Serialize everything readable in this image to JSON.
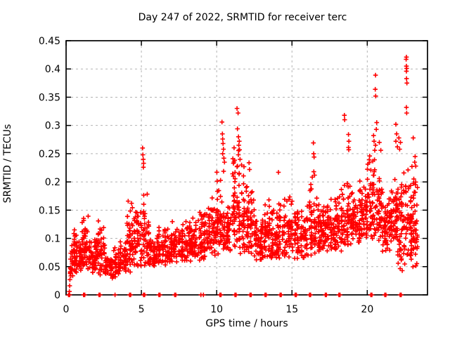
{
  "title": "Day 247 of 2022, SRMTID for receiver terc",
  "chart_data": {
    "type": "scatter",
    "title": "Day 247 of 2022, SRMTID for receiver terc",
    "xlabel": "GPS time / hours",
    "ylabel": "SRMTID / TECUs",
    "x_range": [
      0,
      24
    ],
    "y_range": [
      0,
      0.45
    ],
    "x_ticks": [
      0,
      5,
      10,
      15,
      20
    ],
    "y_ticks": [
      0,
      0.05,
      0.1,
      0.15,
      0.2,
      0.25,
      0.3,
      0.35,
      0.4,
      0.45
    ],
    "grid": true,
    "grid_color": "#b3b3b3",
    "marker": "plus",
    "marker_color": "#ff0000",
    "frame_color": "#000000",
    "legend": "none",
    "description": "Dense scatter of SRMTID values vs GPS time; baseline clusters of points at y=0 near most integer hours; rising trend from ~0.07 early to ~0.15 late with vertical spike columns at ~5.1, 10.4, 11.4, 16.4, 18.5-18.8, 20.5, 21.9, and a maximum column reaching ~0.42 at hour ~22.6.",
    "outlier_points": [
      [
        0.22,
        0.006
      ],
      [
        0.24,
        0.016
      ],
      [
        0.25,
        0.027
      ],
      [
        0.27,
        0.038
      ],
      [
        5.08,
        0.26
      ],
      [
        5.1,
        0.248
      ],
      [
        5.12,
        0.24
      ],
      [
        5.15,
        0.233
      ],
      [
        5.13,
        0.226
      ],
      [
        10.35,
        0.306
      ],
      [
        10.38,
        0.285
      ],
      [
        10.4,
        0.276
      ],
      [
        10.42,
        0.268
      ],
      [
        10.45,
        0.258
      ],
      [
        10.4,
        0.25
      ],
      [
        10.48,
        0.242
      ],
      [
        10.52,
        0.235
      ],
      [
        11.35,
        0.33
      ],
      [
        11.42,
        0.322
      ],
      [
        11.38,
        0.294
      ],
      [
        11.45,
        0.28
      ],
      [
        11.5,
        0.272
      ],
      [
        11.47,
        0.265
      ],
      [
        11.52,
        0.257
      ],
      [
        11.44,
        0.248
      ],
      [
        11.55,
        0.24
      ],
      [
        11.65,
        0.23
      ],
      [
        12.15,
        0.234
      ],
      [
        12.18,
        0.222
      ],
      [
        14.1,
        0.217
      ],
      [
        16.42,
        0.269
      ],
      [
        16.44,
        0.25
      ],
      [
        16.47,
        0.244
      ],
      [
        16.45,
        0.218
      ],
      [
        16.5,
        0.212
      ],
      [
        18.48,
        0.318
      ],
      [
        18.5,
        0.31
      ],
      [
        18.75,
        0.284
      ],
      [
        18.78,
        0.272
      ],
      [
        18.75,
        0.261
      ],
      [
        18.77,
        0.257
      ],
      [
        20.55,
        0.389
      ],
      [
        20.53,
        0.364
      ],
      [
        20.56,
        0.352
      ],
      [
        20.63,
        0.305
      ],
      [
        20.6,
        0.293
      ],
      [
        20.42,
        0.282
      ],
      [
        20.45,
        0.272
      ],
      [
        20.55,
        0.265
      ],
      [
        20.5,
        0.256
      ],
      [
        20.8,
        0.27
      ],
      [
        20.9,
        0.256
      ],
      [
        21.9,
        0.302
      ],
      [
        21.95,
        0.285
      ],
      [
        21.9,
        0.272
      ],
      [
        22.0,
        0.262
      ],
      [
        22.1,
        0.278
      ],
      [
        22.2,
        0.27
      ],
      [
        22.15,
        0.258
      ],
      [
        22.6,
        0.421
      ],
      [
        22.58,
        0.417
      ],
      [
        22.6,
        0.405
      ],
      [
        22.62,
        0.401
      ],
      [
        22.6,
        0.396
      ],
      [
        22.61,
        0.383
      ],
      [
        22.63,
        0.375
      ],
      [
        22.6,
        0.332
      ],
      [
        22.62,
        0.322
      ],
      [
        23.05,
        0.278
      ],
      [
        23.18,
        0.245
      ],
      [
        23.15,
        0.235
      ],
      [
        23.22,
        0.228
      ]
    ],
    "baseline_marks_wide_hours": [
      0.2,
      1.2,
      2.22,
      4.25,
      5.18,
      6.2,
      7.25,
      10.25,
      11.25,
      12.25,
      13.25,
      14.25,
      15.25,
      16.2,
      17.25,
      18.15,
      20.27,
      21.2,
      22.22
    ],
    "baseline_marks_thin_hours": [
      3.25,
      8.95,
      9.12
    ],
    "cloud_bands": [
      [
        0.25,
        0.5,
        22,
        0.032,
        0.09
      ],
      [
        0.5,
        1.0,
        60,
        0.04,
        0.125
      ],
      [
        1.0,
        1.5,
        52,
        0.042,
        0.145
      ],
      [
        1.5,
        2.0,
        48,
        0.038,
        0.11
      ],
      [
        2.0,
        2.5,
        52,
        0.035,
        0.135
      ],
      [
        2.5,
        3.0,
        42,
        0.03,
        0.095
      ],
      [
        3.0,
        3.6,
        46,
        0.028,
        0.09
      ],
      [
        3.6,
        4.0,
        40,
        0.035,
        0.11
      ],
      [
        4.0,
        4.5,
        50,
        0.04,
        0.185
      ],
      [
        4.5,
        5.0,
        42,
        0.045,
        0.175
      ],
      [
        5.0,
        5.5,
        50,
        0.048,
        0.21
      ],
      [
        5.5,
        6.0,
        38,
        0.05,
        0.11
      ],
      [
        6.0,
        6.5,
        42,
        0.05,
        0.125
      ],
      [
        6.5,
        7.0,
        40,
        0.052,
        0.13
      ],
      [
        7.0,
        7.5,
        46,
        0.055,
        0.14
      ],
      [
        7.5,
        8.0,
        46,
        0.055,
        0.14
      ],
      [
        8.0,
        8.5,
        46,
        0.058,
        0.15
      ],
      [
        8.5,
        9.0,
        46,
        0.06,
        0.155
      ],
      [
        9.0,
        9.5,
        50,
        0.062,
        0.16
      ],
      [
        9.5,
        10.0,
        50,
        0.068,
        0.175
      ],
      [
        10.0,
        10.5,
        55,
        0.07,
        0.23
      ],
      [
        10.5,
        11.0,
        46,
        0.07,
        0.165
      ],
      [
        11.0,
        11.5,
        55,
        0.078,
        0.27
      ],
      [
        11.5,
        12.0,
        50,
        0.072,
        0.24
      ],
      [
        12.0,
        12.5,
        50,
        0.07,
        0.22
      ],
      [
        12.5,
        13.0,
        46,
        0.06,
        0.15
      ],
      [
        13.0,
        13.5,
        50,
        0.06,
        0.175
      ],
      [
        13.5,
        14.0,
        46,
        0.062,
        0.165
      ],
      [
        14.0,
        14.5,
        50,
        0.06,
        0.175
      ],
      [
        14.5,
        15.0,
        46,
        0.065,
        0.185
      ],
      [
        15.0,
        15.5,
        46,
        0.06,
        0.175
      ],
      [
        15.5,
        16.0,
        40,
        0.065,
        0.155
      ],
      [
        16.0,
        16.5,
        50,
        0.07,
        0.215
      ],
      [
        16.5,
        17.0,
        46,
        0.07,
        0.18
      ],
      [
        17.0,
        17.5,
        46,
        0.072,
        0.185
      ],
      [
        17.5,
        18.0,
        46,
        0.07,
        0.175
      ],
      [
        18.0,
        18.5,
        46,
        0.075,
        0.19
      ],
      [
        18.5,
        19.0,
        50,
        0.08,
        0.22
      ],
      [
        19.0,
        19.5,
        46,
        0.09,
        0.19
      ],
      [
        19.5,
        20.0,
        50,
        0.098,
        0.21
      ],
      [
        20.0,
        20.5,
        55,
        0.09,
        0.25
      ],
      [
        20.5,
        21.0,
        50,
        0.09,
        0.235
      ],
      [
        21.0,
        21.5,
        55,
        0.07,
        0.19
      ],
      [
        21.5,
        22.0,
        55,
        0.09,
        0.215
      ],
      [
        22.0,
        22.5,
        55,
        0.04,
        0.225
      ],
      [
        22.5,
        23.0,
        55,
        0.06,
        0.24
      ],
      [
        23.0,
        23.35,
        42,
        0.04,
        0.245
      ]
    ]
  }
}
